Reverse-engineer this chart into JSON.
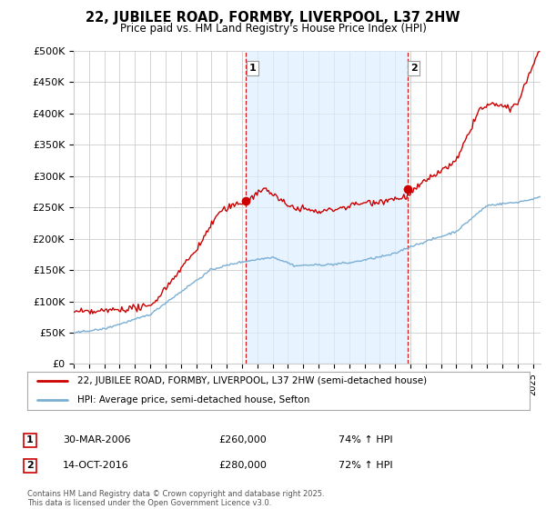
{
  "title": "22, JUBILEE ROAD, FORMBY, LIVERPOOL, L37 2HW",
  "subtitle": "Price paid vs. HM Land Registry's House Price Index (HPI)",
  "ylim": [
    0,
    500000
  ],
  "yticks": [
    0,
    50000,
    100000,
    150000,
    200000,
    250000,
    300000,
    350000,
    400000,
    450000,
    500000
  ],
  "ytick_labels": [
    "£0",
    "£50K",
    "£100K",
    "£150K",
    "£200K",
    "£250K",
    "£300K",
    "£350K",
    "£400K",
    "£450K",
    "£500K"
  ],
  "red_line_label": "22, JUBILEE ROAD, FORMBY, LIVERPOOL, L37 2HW (semi-detached house)",
  "blue_line_label": "HPI: Average price, semi-detached house, Sefton",
  "transaction1_date": "30-MAR-2006",
  "transaction1_price": "£260,000",
  "transaction1_hpi": "74% ↑ HPI",
  "transaction2_date": "14-OCT-2016",
  "transaction2_price": "£280,000",
  "transaction2_hpi": "72% ↑ HPI",
  "footer": "Contains HM Land Registry data © Crown copyright and database right 2025.\nThis data is licensed under the Open Government Licence v3.0.",
  "red_color": "#cc0000",
  "blue_color": "#7aafd4",
  "shade_color": "#ddeeff",
  "marker1_x": 2006.25,
  "marker1_y": 260000,
  "marker2_x": 2016.79,
  "marker2_y": 280000,
  "grid_color": "#cccccc",
  "xlim_start": 1995,
  "xlim_end": 2025.5
}
